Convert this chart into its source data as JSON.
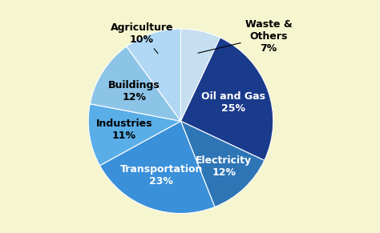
{
  "labels": [
    "Waste &\nOthers",
    "Oil and Gas",
    "Electricity",
    "Transportation",
    "Industries",
    "Buildings",
    "Agriculture"
  ],
  "pct_labels": [
    "7%",
    "25%",
    "12%",
    "23%",
    "11%",
    "12%",
    "10%"
  ],
  "display_labels": [
    "Waste &\nOthers",
    "Oil and Gas",
    "Electricity",
    "Transportation",
    "Industries",
    "Buildings",
    "Agriculture"
  ],
  "values": [
    7,
    25,
    12,
    23,
    11,
    12,
    10
  ],
  "colors": [
    "#c5dff0",
    "#1a3a8c",
    "#2e75b6",
    "#3a90d9",
    "#5aaee8",
    "#8cc4e8",
    "#b0d8f4"
  ],
  "background_color": "#f5f5d0",
  "startangle": 90,
  "inside_labels": [
    "Oil and Gas",
    "Electricity",
    "Transportation",
    "Buildings",
    "Industries"
  ],
  "outside_labels": [
    "Agriculture",
    "Waste &\nOthers"
  ],
  "label_colors": {
    "Oil and Gas": "white",
    "Electricity": "white",
    "Transportation": "white",
    "Industries": "black",
    "Buildings": "black",
    "Agriculture": "black",
    "Waste &\nOthers": "black"
  },
  "inside_radii": {
    "Oil and Gas": 0.6,
    "Electricity": 0.68,
    "Transportation": 0.62,
    "Industries": 0.62,
    "Buildings": 0.6
  },
  "outside_text_positions": {
    "Agriculture": [
      -0.42,
      0.95
    ],
    "Waste &\nOthers": [
      0.95,
      0.92
    ]
  },
  "outside_arrow_starts": {
    "Agriculture": [
      0.5,
      0.92
    ],
    "Waste &\nOthers": [
      0.5,
      0.92
    ]
  }
}
